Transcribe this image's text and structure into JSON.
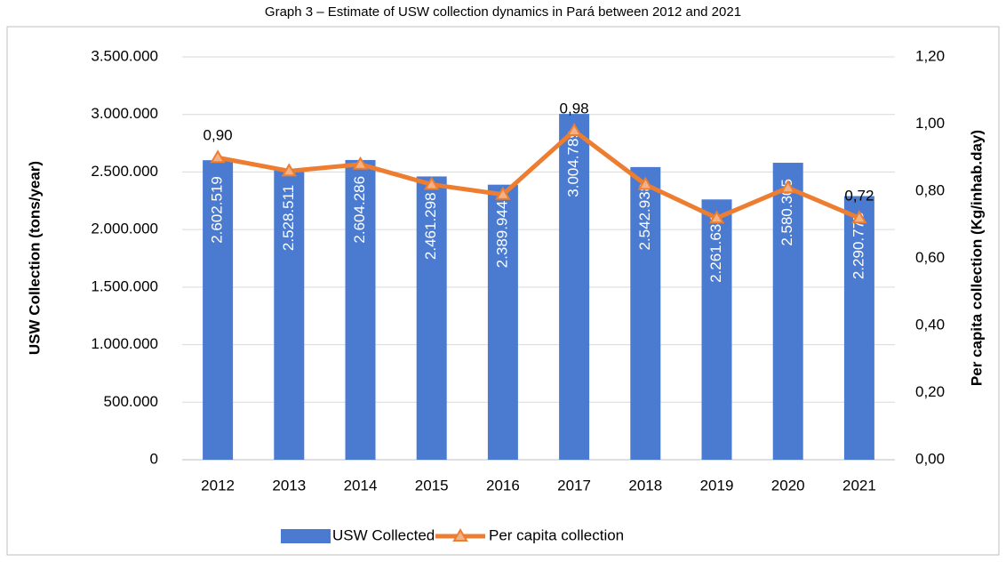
{
  "chart_data": {
    "type": "bar_line",
    "title": "Graph 3 – Estimate of USW collection dynamics in Pará between 2012 and 2021",
    "y_label": "USW Collection  (tons/year)",
    "y2_label": "Per capita collection (Kg/inhab.day)",
    "categories": [
      "2012",
      "2013",
      "2014",
      "2015",
      "2016",
      "2017",
      "2018",
      "2019",
      "2020",
      "2021"
    ],
    "series": [
      {
        "name": "USW Collected",
        "type": "bar",
        "color": "#4a7bd0",
        "values": [
          2602519,
          2528511,
          2604286,
          2461298,
          2389944,
          3004789,
          2542938,
          2261634,
          2580305,
          2290775
        ],
        "value_labels": [
          "2.602.519",
          "2.528.511",
          "2.604.286",
          "2.461.298",
          "2.389.944",
          "3.004.789",
          "2.542.938",
          "2.261.634",
          "2.580.305",
          "2.290.775"
        ]
      },
      {
        "name": "Per capita collection",
        "type": "line",
        "axis": "y2",
        "color": "#ed7d31",
        "marker_fill": "#f4b183",
        "values": [
          0.9,
          0.86,
          0.88,
          0.82,
          0.79,
          0.98,
          0.82,
          0.72,
          0.81,
          0.72
        ],
        "value_labels": [
          "0,90",
          null,
          null,
          null,
          null,
          "0,98",
          null,
          null,
          null,
          "0,72"
        ]
      }
    ],
    "ylim": [
      0,
      3500000
    ],
    "yticks": [
      0,
      {
        "value": 500000,
        "label": "500.000"
      },
      {
        "value": 1000000,
        "label": "1.000.000"
      },
      {
        "value": 1500000,
        "label": "1.500.000"
      },
      {
        "value": 2000000,
        "label": "2.000.000"
      },
      {
        "value": 2500000,
        "label": "2.500.000"
      },
      {
        "value": 3000000,
        "label": "3.000.000"
      },
      {
        "value": 3500000,
        "label": "3.500.000"
      }
    ],
    "y2lim": [
      0,
      1.2
    ],
    "y2ticks": [
      {
        "value": 0,
        "label": "0,00"
      },
      {
        "value": 0.2,
        "label": "0,20"
      },
      {
        "value": 0.4,
        "label": "0,40"
      },
      {
        "value": 0.6,
        "label": "0,60"
      },
      {
        "value": 0.8,
        "label": "0,80"
      },
      {
        "value": 1.0,
        "label": "1,00"
      },
      {
        "value": 1.2,
        "label": "1,20"
      }
    ],
    "legend": "bottom"
  }
}
